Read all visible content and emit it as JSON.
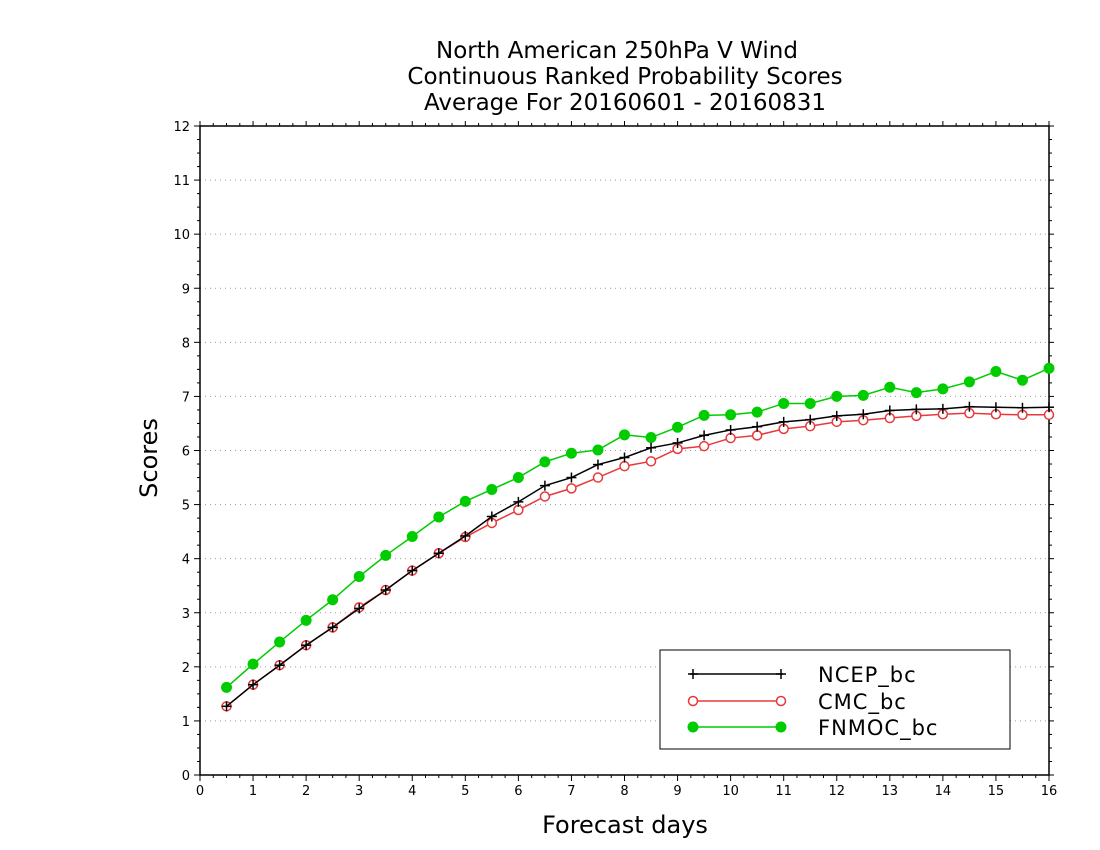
{
  "chart_data": {
    "type": "line",
    "title_lines": [
      "North American 250hPa V Wind",
      "Continuous Ranked Probability Scores",
      "Average For 20160601 - 20160831"
    ],
    "xlabel": "Forecast days",
    "ylabel": "Scores",
    "xlim": [
      0,
      16
    ],
    "ylim": [
      0,
      12
    ],
    "xticks": [
      0,
      1,
      2,
      3,
      4,
      5,
      6,
      7,
      8,
      9,
      10,
      11,
      12,
      13,
      14,
      15,
      16
    ],
    "yticks": [
      0,
      1,
      2,
      3,
      4,
      5,
      6,
      7,
      8,
      9,
      10,
      11,
      12
    ],
    "grid": "horizontal dotted",
    "legend_position": "bottom-right",
    "x": [
      0.5,
      1,
      1.5,
      2,
      2.5,
      3,
      3.5,
      4,
      4.5,
      5,
      5.5,
      6,
      6.5,
      7,
      7.5,
      8,
      8.5,
      9,
      9.5,
      10,
      10.5,
      11,
      11.5,
      12,
      12.5,
      13,
      13.5,
      14,
      14.5,
      15,
      15.5,
      16
    ],
    "series": [
      {
        "name": "NCEP_bc",
        "color": "#000000",
        "marker": "plus",
        "values": [
          1.27,
          1.67,
          2.03,
          2.4,
          2.73,
          3.08,
          3.42,
          3.78,
          4.1,
          4.42,
          4.78,
          5.05,
          5.35,
          5.5,
          5.74,
          5.87,
          6.05,
          6.14,
          6.28,
          6.38,
          6.44,
          6.53,
          6.57,
          6.64,
          6.67,
          6.74,
          6.76,
          6.77,
          6.81,
          6.8,
          6.79,
          6.8
        ]
      },
      {
        "name": "CMC_bc",
        "color": "#e8383a",
        "marker": "open-circle",
        "values": [
          1.27,
          1.67,
          2.03,
          2.4,
          2.73,
          3.1,
          3.42,
          3.78,
          4.1,
          4.4,
          4.66,
          4.9,
          5.15,
          5.3,
          5.5,
          5.71,
          5.8,
          6.03,
          6.08,
          6.23,
          6.28,
          6.4,
          6.45,
          6.53,
          6.56,
          6.6,
          6.64,
          6.67,
          6.69,
          6.67,
          6.66,
          6.66
        ]
      },
      {
        "name": "FNMOC_bc",
        "color": "#00cc00",
        "marker": "filled-circle",
        "values": [
          1.62,
          2.05,
          2.46,
          2.86,
          3.24,
          3.67,
          4.06,
          4.41,
          4.77,
          5.06,
          5.28,
          5.5,
          5.79,
          5.95,
          6.01,
          6.29,
          6.24,
          6.43,
          6.65,
          6.66,
          6.71,
          6.87,
          6.87,
          7.0,
          7.02,
          7.17,
          7.07,
          7.14,
          7.27,
          7.46,
          7.3,
          7.52
        ]
      }
    ]
  }
}
